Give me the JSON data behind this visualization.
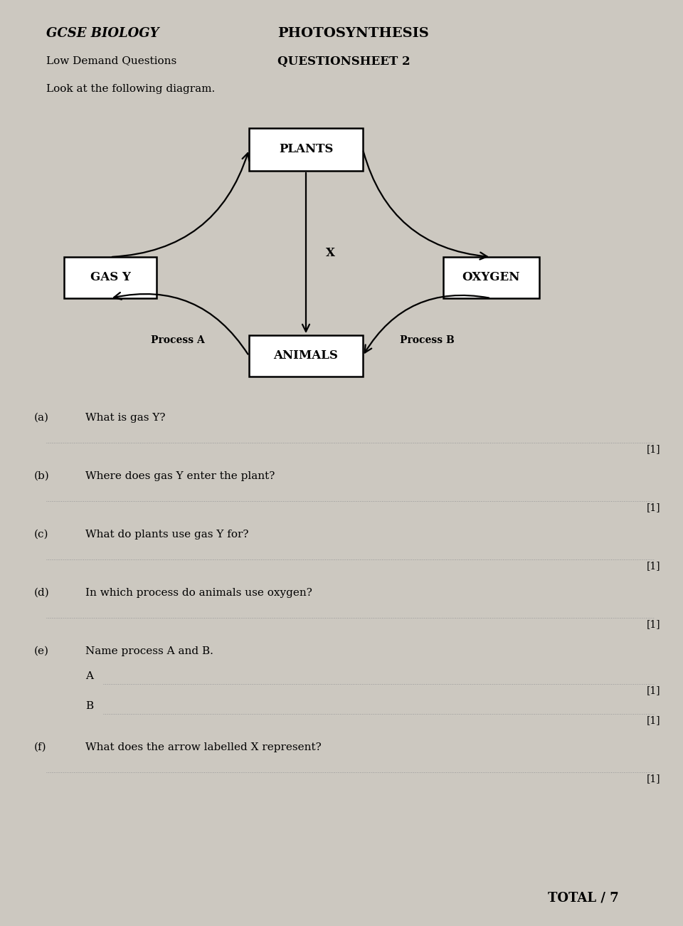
{
  "title_left": "GCSE BIOLOGY",
  "title_center": "PHOTOSYNTHESIS",
  "subtitle_left": "Low Demand Questions",
  "subtitle_center": "QUESTIONSHEET 2",
  "instruction": "Look at the following diagram.",
  "bg_color": "#ccc8c0",
  "box_facecolor": "white",
  "box_edgecolor": "black",
  "process_a_label": "Process A",
  "process_b_label": "Process B",
  "x_label": "X",
  "questions": [
    {
      "label": "(a)",
      "text": "What is gas Y?"
    },
    {
      "label": "(b)",
      "text": "Where does gas Y enter the plant?"
    },
    {
      "label": "(c)",
      "text": "What do plants use gas Y for?"
    },
    {
      "label": "(d)",
      "text": "In which process do animals use oxygen?"
    },
    {
      "label": "(e)",
      "text": "Name process A and B."
    },
    {
      "label": "(f)",
      "text": "What does the arrow labelled X represent?"
    }
  ],
  "total_text": "TOTAL / 7"
}
